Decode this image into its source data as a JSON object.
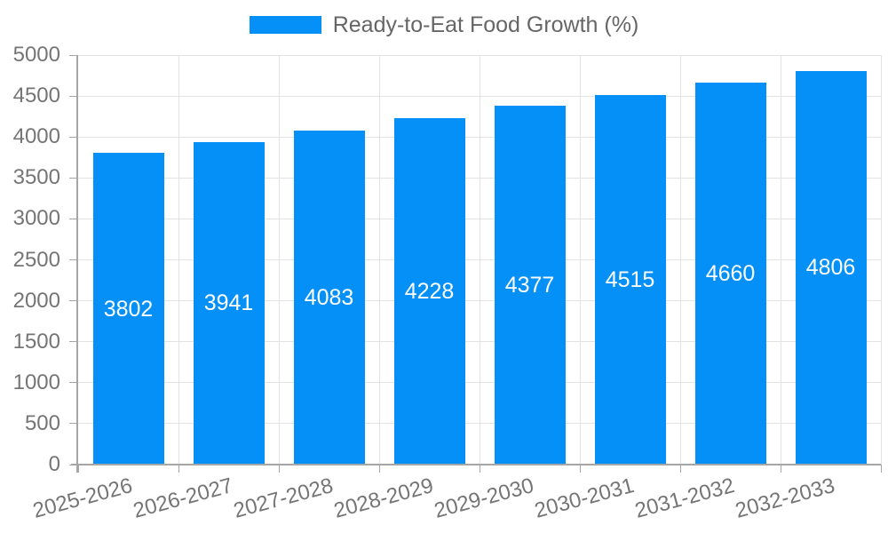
{
  "legend": {
    "label": "Ready-to-Eat Food Growth (%)"
  },
  "colors": {
    "bar": "#0590F8",
    "grid": "#e3e3e3",
    "axis": "#a6a6a6",
    "tick_text": "#757575",
    "legend_text": "#666666",
    "bar_label": "#ffffff",
    "background": "#ffffff"
  },
  "chart_data": {
    "type": "bar",
    "title": "",
    "legend_label": "Ready-to-Eat Food Growth (%)",
    "legend_position": "top",
    "categories": [
      "2025-2026",
      "2026-2027",
      "2027-2028",
      "2028-2029",
      "2029-2030",
      "2030-2031",
      "2031-2032",
      "2032-2033"
    ],
    "values": [
      3802,
      3941,
      4083,
      4228,
      4377,
      4515,
      4660,
      4806
    ],
    "bar_labels": [
      "3802",
      "3941",
      "4083",
      "4228",
      "4377",
      "4515",
      "4660",
      "4806"
    ],
    "xlabel": "",
    "ylabel": "",
    "ylim": [
      0,
      5000
    ],
    "ytick_interval": 500,
    "ytick_labels": [
      "0",
      "500",
      "1000",
      "1500",
      "2000",
      "2500",
      "3000",
      "3500",
      "4000",
      "4500",
      "5000"
    ],
    "grid": true,
    "xlabel_rotation_deg": -15
  }
}
